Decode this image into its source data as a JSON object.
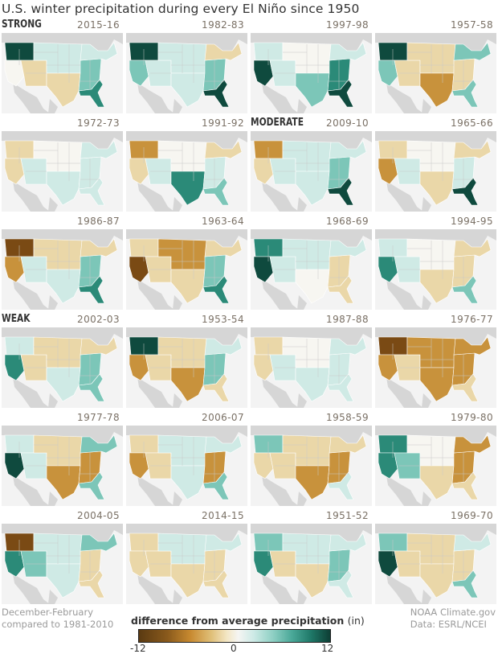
{
  "title": "U.S. winter precipitation during every El Niño since 1950",
  "categories": {
    "strong": "STRONG",
    "moderate": "MODERATE",
    "weak": "WEAK"
  },
  "panels": [
    {
      "year": "2015-16",
      "category": "STRONG",
      "pattern": "wet-west-coast-south"
    },
    {
      "year": "1982-83",
      "category": "STRONG",
      "pattern": "wet-west-gulf"
    },
    {
      "year": "1997-98",
      "category": "STRONG",
      "pattern": "wet-california-southeast"
    },
    {
      "year": "1957-58",
      "category": "STRONG",
      "pattern": "wet-coasts-dry-south-central"
    },
    {
      "year": "1972-73",
      "category": "STRONG",
      "pattern": "mixed"
    },
    {
      "year": "1991-92",
      "category": "STRONG",
      "pattern": "wet-texas-dry-northwest"
    },
    {
      "year": "2009-10",
      "category": "MODERATE",
      "pattern": "wet-southeast-dry-northwest"
    },
    {
      "year": "1965-66",
      "category": "MODERATE",
      "pattern": "wet-gulf-dry-west"
    },
    {
      "year": "1986-87",
      "category": "MODERATE",
      "pattern": "dry-west-wet-southeast"
    },
    {
      "year": "1963-64",
      "category": "MODERATE",
      "pattern": "dry-california-central"
    },
    {
      "year": "1968-69",
      "category": "MODERATE",
      "pattern": "wet-west"
    },
    {
      "year": "1994-95",
      "category": "MODERATE",
      "pattern": "wet-california"
    },
    {
      "year": "2002-03",
      "category": "WEAK",
      "pattern": "mixed-wet-east"
    },
    {
      "year": "1953-54",
      "category": "WEAK",
      "pattern": "wet-northwest-dry-south"
    },
    {
      "year": "1987-88",
      "category": "WEAK",
      "pattern": "mixed"
    },
    {
      "year": "1976-77",
      "category": "WEAK",
      "pattern": "dry-west-central"
    },
    {
      "year": "1977-78",
      "category": "WEAK",
      "pattern": "wet-west-dry-south-central"
    },
    {
      "year": "2006-07",
      "category": "WEAK",
      "pattern": "dry-west-southeast"
    },
    {
      "year": "1958-59",
      "category": "WEAK",
      "pattern": "dry-south-central"
    },
    {
      "year": "1979-80",
      "category": "WEAK",
      "pattern": "wet-west-dry-east"
    },
    {
      "year": "2004-05",
      "category": "WEAK",
      "pattern": "wet-southwest-dry-northwest"
    },
    {
      "year": "2014-15",
      "category": "WEAK",
      "pattern": "mixed-dry"
    },
    {
      "year": "1951-52",
      "category": "WEAK",
      "pattern": "wet-california-east"
    },
    {
      "year": "1969-70",
      "category": "WEAK",
      "pattern": "wet-california-dry-central"
    }
  ],
  "footer": {
    "period_line1": "December-February",
    "period_line2": "compared to 1981-2010",
    "source_line1": "NOAA Climate.gov",
    "source_line2": "Data: ESRL/NCEI"
  },
  "legend": {
    "title": "difference from average precipitation",
    "unit": "(in)",
    "min_label": "-12",
    "mid_label": "0",
    "max_label": "12",
    "colors": {
      "dry_extreme": "#5a3a12",
      "dry": "#c88a30",
      "neutral": "#f5f5f3",
      "wet": "#4aa898",
      "wet_extreme": "#0d3e34"
    }
  },
  "colors": {
    "background": "#ffffff",
    "map_ocean": "#f3f3f3",
    "map_neighbor_land": "#d6d6d6",
    "year_label": "#7a7065"
  }
}
